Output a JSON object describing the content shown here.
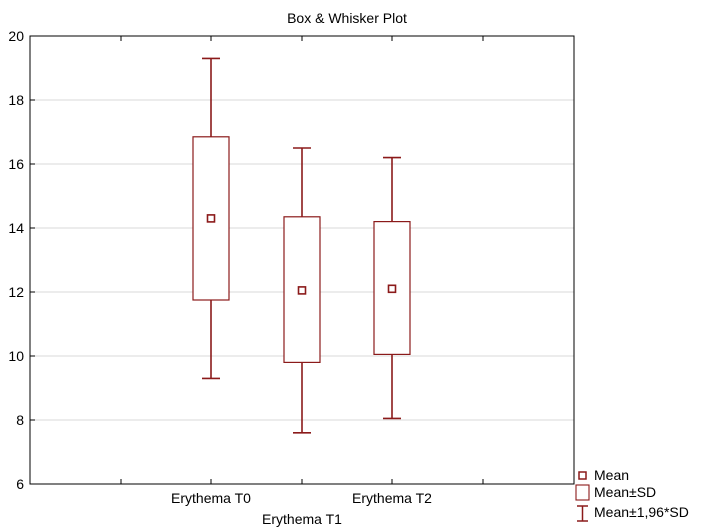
{
  "chart_data": {
    "type": "box",
    "title": "Box & Whisker Plot",
    "xlabel": "",
    "ylabel": "",
    "ylim": [
      6,
      20
    ],
    "yticks": [
      6,
      8,
      10,
      12,
      14,
      16,
      18,
      20
    ],
    "grid": "horizontal",
    "legend_position": "bottom-right",
    "categories": [
      "Erythema T0",
      "Erythema T1",
      "Erythema T2"
    ],
    "series": [
      {
        "category": "Erythema T0",
        "mean": 14.3,
        "sd_low": 11.75,
        "sd_high": 16.85,
        "whisker_low": 9.3,
        "whisker_high": 19.3
      },
      {
        "category": "Erythema T1",
        "mean": 12.05,
        "sd_low": 9.8,
        "sd_high": 14.35,
        "whisker_low": 7.6,
        "whisker_high": 16.5
      },
      {
        "category": "Erythema T2",
        "mean": 12.1,
        "sd_low": 10.05,
        "sd_high": 14.2,
        "whisker_low": 8.05,
        "whisker_high": 16.2
      }
    ],
    "legend": [
      "Mean",
      "Mean±SD",
      "Mean±1,96*SD"
    ],
    "colors": {
      "marks": "#8b1a1a",
      "grid": "#d9d9d9",
      "axis": "#000000"
    }
  }
}
